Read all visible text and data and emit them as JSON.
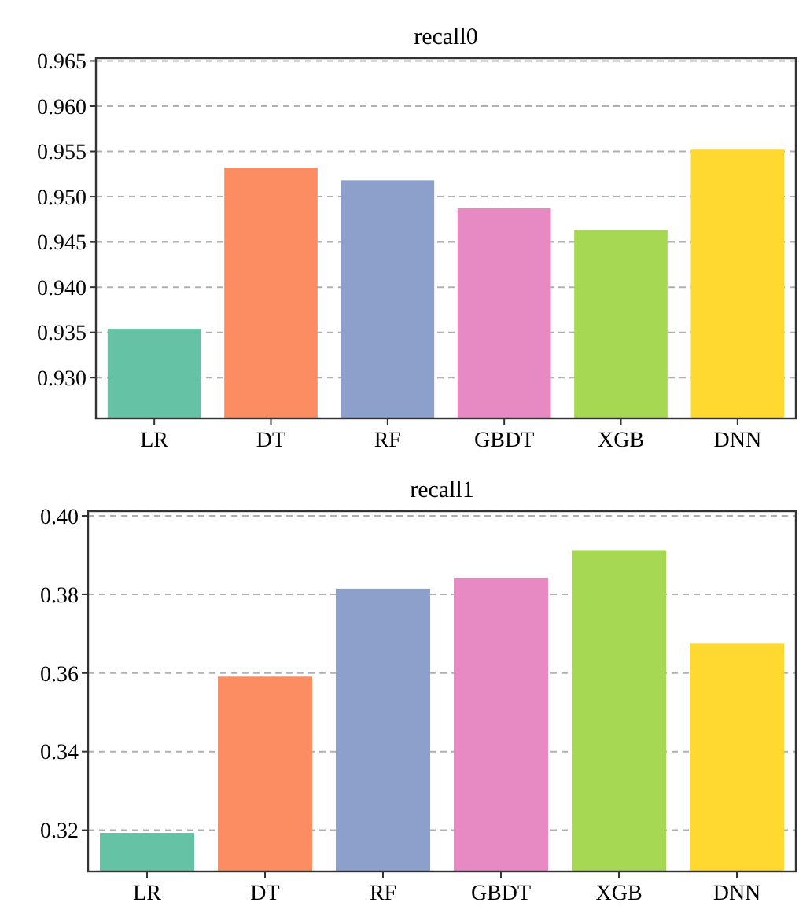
{
  "chart_data": [
    {
      "type": "bar",
      "title": "recall0",
      "categories": [
        "LR",
        "DT",
        "RF",
        "GBDT",
        "XGB",
        "DNN"
      ],
      "values": [
        0.9354,
        0.9532,
        0.9518,
        0.9487,
        0.9463,
        0.9552
      ],
      "colors": [
        "#66c2a5",
        "#fc8d62",
        "#8da0cb",
        "#e78ac3",
        "#a6d854",
        "#ffd92f"
      ],
      "ylim": [
        0.9255,
        0.9653
      ],
      "yticks": [
        {
          "value": 0.93,
          "label": "0.930"
        },
        {
          "value": 0.935,
          "label": "0.935"
        },
        {
          "value": 0.94,
          "label": "0.940"
        },
        {
          "value": 0.945,
          "label": "0.945"
        },
        {
          "value": 0.95,
          "label": "0.950"
        },
        {
          "value": 0.955,
          "label": "0.955"
        },
        {
          "value": 0.96,
          "label": "0.960"
        },
        {
          "value": 0.965,
          "label": "0.965"
        }
      ],
      "grid": "y"
    },
    {
      "type": "bar",
      "title": "recall1",
      "categories": [
        "LR",
        "DT",
        "RF",
        "GBDT",
        "XGB",
        "DNN"
      ],
      "values": [
        0.3193,
        0.3591,
        0.3814,
        0.3842,
        0.3913,
        0.3675
      ],
      "colors": [
        "#66c2a5",
        "#fc8d62",
        "#8da0cb",
        "#e78ac3",
        "#a6d854",
        "#ffd92f"
      ],
      "ylim": [
        0.3095,
        0.4012
      ],
      "yticks": [
        {
          "value": 0.32,
          "label": "0.32"
        },
        {
          "value": 0.34,
          "label": "0.34"
        },
        {
          "value": 0.36,
          "label": "0.36"
        },
        {
          "value": 0.38,
          "label": "0.38"
        },
        {
          "value": 0.4,
          "label": "0.40"
        }
      ],
      "grid": "y"
    }
  ]
}
